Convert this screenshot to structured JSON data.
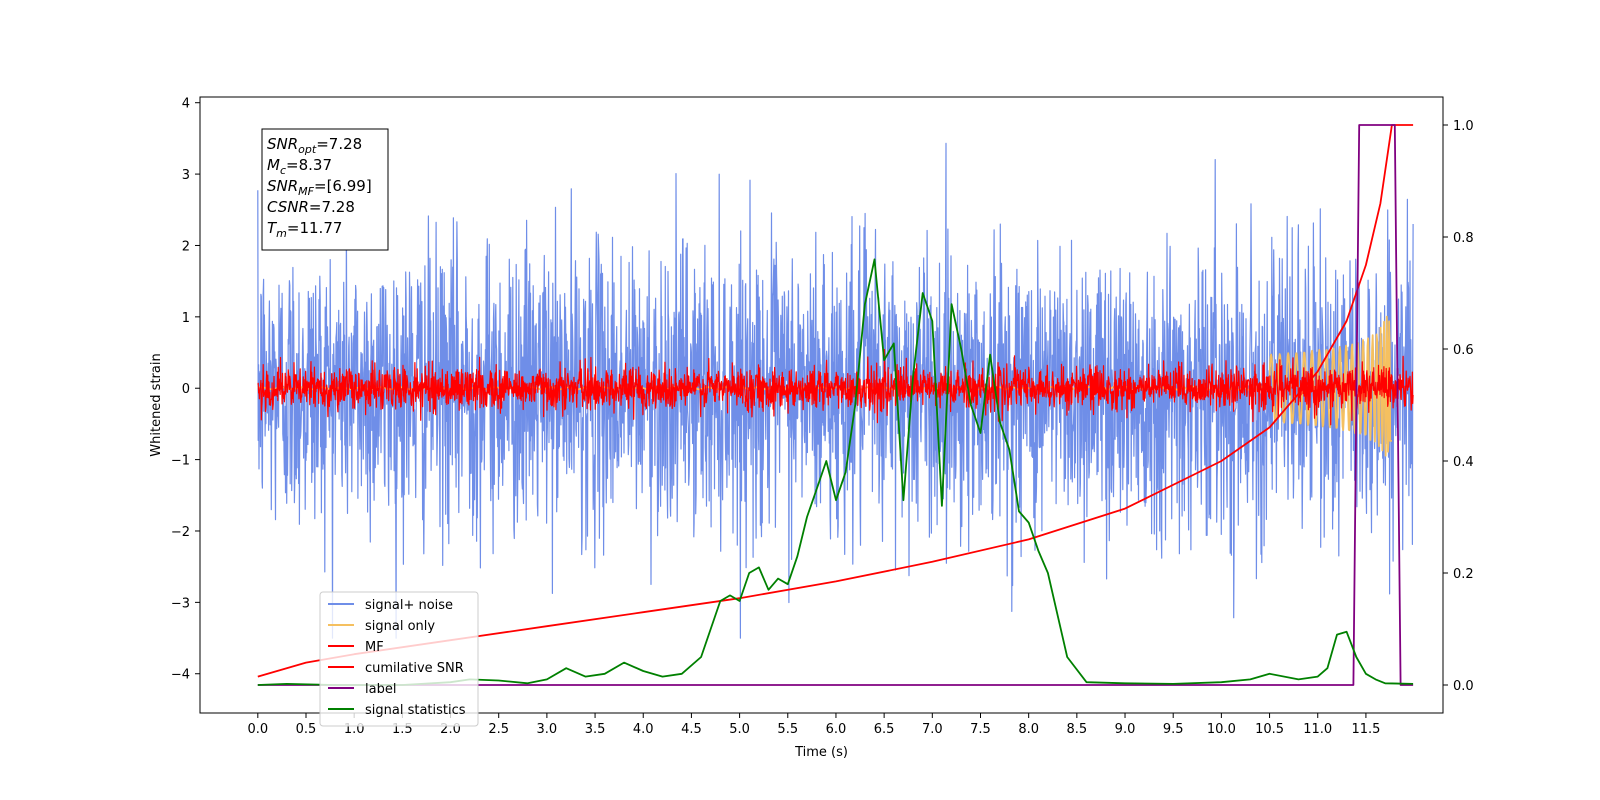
{
  "chart_data": {
    "type": "line",
    "title": "",
    "xlabel": "Time (s)",
    "ylabel": "Whitened strain",
    "xlim": [
      -0.6,
      12.3
    ],
    "ylim": [
      -4.55,
      4.08
    ],
    "y2lim": [
      -0.05,
      1.05
    ],
    "grid": false,
    "legend_position": "lower-left",
    "x_ticks": [
      "0.0",
      "0.5",
      "1.0",
      "1.5",
      "2.0",
      "2.5",
      "3.0",
      "3.5",
      "4.0",
      "4.5",
      "5.0",
      "5.5",
      "6.0",
      "6.5",
      "7.0",
      "7.5",
      "8.0",
      "8.5",
      "9.0",
      "9.5",
      "10.0",
      "10.5",
      "11.0",
      "11.5"
    ],
    "y_ticks": [
      "4",
      "3",
      "2",
      "1",
      "0",
      "−1",
      "−2",
      "−3",
      "−4"
    ],
    "y2_ticks": [
      "1.0",
      "0.8",
      "0.6",
      "0.4",
      "0.2",
      "0.0"
    ],
    "annotation": [
      {
        "name": "SNR",
        "sub": "opt",
        "value": "=7.28"
      },
      {
        "name": "M",
        "sub": "c",
        "value": "=8.37"
      },
      {
        "name": "SNR",
        "sub": "MF",
        "value": "=[6.99]"
      },
      {
        "name": "CSNR",
        "sub": "",
        "value": "=7.28"
      },
      {
        "name": "T",
        "sub": "m",
        "value": "=11.77"
      }
    ],
    "series": [
      {
        "name": "signal+ noise",
        "color": "#6f8ee8",
        "axis": "left",
        "kind": "noise",
        "x_range": [
          0.0,
          11.99
        ],
        "sigma": 1.0
      },
      {
        "name": "signal only",
        "color": "#f5c060",
        "axis": "left",
        "kind": "chirp",
        "x_range": [
          0.0,
          11.77
        ]
      },
      {
        "name": "MF",
        "color": "#ff0000",
        "axis": "left",
        "kind": "noise",
        "x_range": [
          0.0,
          11.99
        ],
        "sigma": 0.15
      },
      {
        "name": "cumilative SNR",
        "color": "#ff0000",
        "axis": "right",
        "x": [
          0.0,
          0.5,
          1.0,
          2.0,
          3.0,
          4.0,
          5.0,
          6.0,
          7.0,
          8.0,
          9.0,
          10.0,
          10.5,
          11.0,
          11.3,
          11.5,
          11.65,
          11.77,
          11.99
        ],
        "y": [
          0.015,
          0.04,
          0.055,
          0.08,
          0.105,
          0.13,
          0.155,
          0.185,
          0.22,
          0.26,
          0.315,
          0.4,
          0.46,
          0.56,
          0.65,
          0.75,
          0.86,
          1.0,
          1.0
        ]
      },
      {
        "name": "label",
        "color": "#800080",
        "axis": "right",
        "x": [
          0.0,
          11.37,
          11.43,
          11.8,
          11.86,
          11.99
        ],
        "y": [
          0.0,
          0.0,
          1.0,
          1.0,
          0.0,
          0.0
        ]
      },
      {
        "name": "signal statistics",
        "color": "#008000",
        "axis": "right",
        "x": [
          0.0,
          0.3,
          0.8,
          1.5,
          2.0,
          2.2,
          2.5,
          2.8,
          3.0,
          3.2,
          3.4,
          3.6,
          3.8,
          4.0,
          4.2,
          4.4,
          4.6,
          4.7,
          4.8,
          4.9,
          5.0,
          5.1,
          5.2,
          5.3,
          5.4,
          5.5,
          5.6,
          5.7,
          5.8,
          5.9,
          6.0,
          6.1,
          6.2,
          6.3,
          6.4,
          6.5,
          6.6,
          6.7,
          6.8,
          6.9,
          7.0,
          7.1,
          7.2,
          7.3,
          7.4,
          7.5,
          7.6,
          7.7,
          7.8,
          7.9,
          8.0,
          8.1,
          8.2,
          8.4,
          8.6,
          9.0,
          9.5,
          10.0,
          10.3,
          10.5,
          10.8,
          11.0,
          11.1,
          11.2,
          11.3,
          11.4,
          11.5,
          11.6,
          11.7,
          11.99
        ],
        "y": [
          0.0,
          0.002,
          0.0,
          0.0,
          0.005,
          0.01,
          0.008,
          0.003,
          0.01,
          0.03,
          0.015,
          0.02,
          0.04,
          0.025,
          0.015,
          0.02,
          0.05,
          0.1,
          0.15,
          0.16,
          0.15,
          0.2,
          0.21,
          0.17,
          0.19,
          0.18,
          0.23,
          0.3,
          0.35,
          0.4,
          0.33,
          0.38,
          0.5,
          0.68,
          0.76,
          0.58,
          0.61,
          0.33,
          0.55,
          0.7,
          0.65,
          0.32,
          0.68,
          0.6,
          0.5,
          0.45,
          0.59,
          0.47,
          0.42,
          0.31,
          0.29,
          0.24,
          0.2,
          0.05,
          0.005,
          0.003,
          0.002,
          0.005,
          0.01,
          0.02,
          0.01,
          0.015,
          0.03,
          0.09,
          0.095,
          0.05,
          0.02,
          0.01,
          0.003,
          0.002
        ]
      }
    ]
  }
}
